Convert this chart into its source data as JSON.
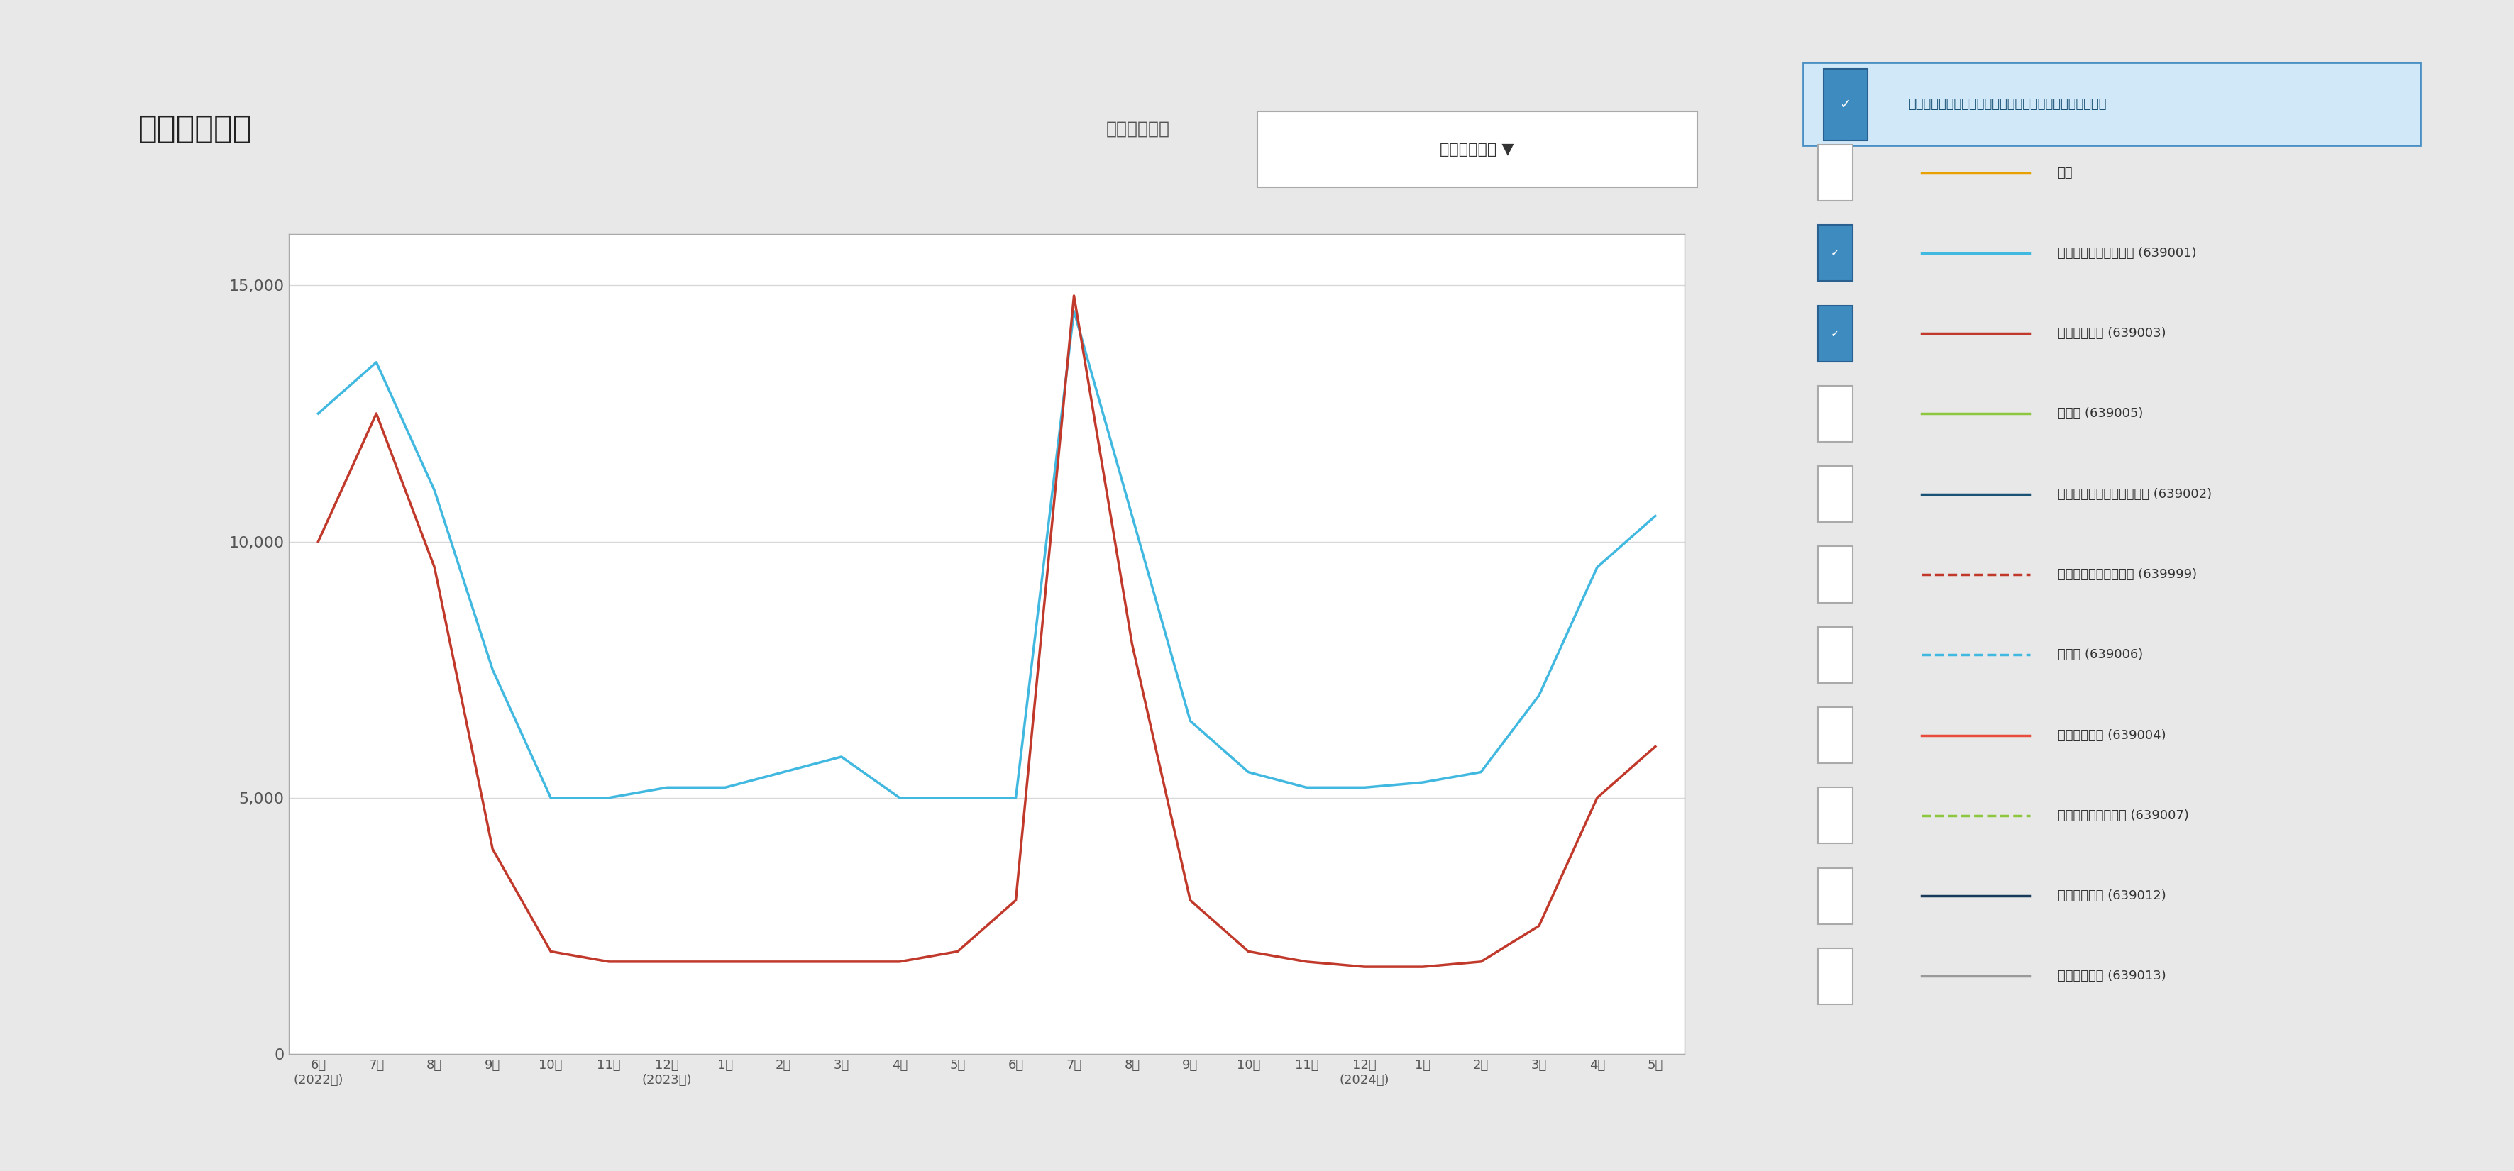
{
  "title": "販売動向比較",
  "subtitle_left": "折れ線グラフ",
  "subtitle_right": "千人当り金額 ▼",
  "background_color": "#e8e8e8",
  "chart_bg": "#ffffff",
  "panel_bg": "#ffffff",
  "blue_line": [
    12500,
    13500,
    11000,
    7500,
    5000,
    5000,
    5200,
    5200,
    5500,
    5800,
    5000,
    5000,
    5000,
    14500,
    10500,
    6500,
    5500,
    5200,
    5200,
    5300,
    5500,
    7000,
    9500,
    10500
  ],
  "red_line": [
    10000,
    12500,
    9500,
    4000,
    2000,
    1800,
    1800,
    1800,
    1800,
    1800,
    1800,
    2000,
    3000,
    14800,
    8000,
    3000,
    2000,
    1800,
    1700,
    1700,
    1800,
    2500,
    5000,
    6000
  ],
  "blue_color": "#41b8e0",
  "red_color": "#c0392b",
  "ylim": [
    0,
    16000
  ],
  "yticks": [
    0,
    5000,
    10000,
    15000
  ],
  "month_labels": [
    "6月",
    "7月",
    "8月",
    "9月",
    "10月",
    "11月",
    "12月",
    "1月",
    "2月",
    "3月",
    "4月",
    "5月",
    "6月",
    "7月",
    "8月",
    "9月",
    "10月",
    "11月",
    "12月",
    "1月",
    "2月",
    "3月",
    "4月",
    "5月"
  ],
  "year_indices": [
    0,
    6,
    18
  ],
  "year_labels": [
    "(2022年)",
    "(2023年)",
    "(2024年)"
  ],
  "legend_items": [
    {
      "label": "合計",
      "color": "#e8a000",
      "checked": false,
      "linestyle": "-"
    },
    {
      "label": "制汗・デオドラント剤 (639001)",
      "color": "#41b8e0",
      "checked": true,
      "linestyle": "-"
    },
    {
      "label": "汗拭きシート (639003)",
      "color": "#c0392b",
      "checked": true,
      "linestyle": "-"
    },
    {
      "label": "脱毛剤 (639005)",
      "color": "#8dc63f",
      "checked": false,
      "linestyle": "-"
    },
    {
      "label": "足用制汗・デオドラント剤 (639002)",
      "color": "#1a5276",
      "checked": false,
      "linestyle": "-"
    },
    {
      "label": "その他エチケット用品 (639999)",
      "color": "#c0392b",
      "checked": false,
      "linestyle": "--"
    },
    {
      "label": "脱色剤 (639006)",
      "color": "#41b8e0",
      "checked": false,
      "linestyle": "--"
    },
    {
      "label": "汗わきパッド (639004)",
      "color": "#e74c3c",
      "checked": false,
      "linestyle": "-"
    },
    {
      "label": "便座除菌クリーナー (639007)",
      "color": "#8dc63f",
      "checked": false,
      "linestyle": "--"
    },
    {
      "label": "静電気防止剤 (639012)",
      "color": "#1a3a5c",
      "checked": false,
      "linestyle": "-"
    },
    {
      "label": "防水スプレー (639013)",
      "color": "#999999",
      "checked": false,
      "linestyle": "-"
    }
  ],
  "legend_header": "最大で００個まで選択できます（無選択にはできません）",
  "legend_header_color": "#1a5276",
  "legend_header_bg": "#d0e8f8",
  "legend_border_color": "#4a90c4"
}
